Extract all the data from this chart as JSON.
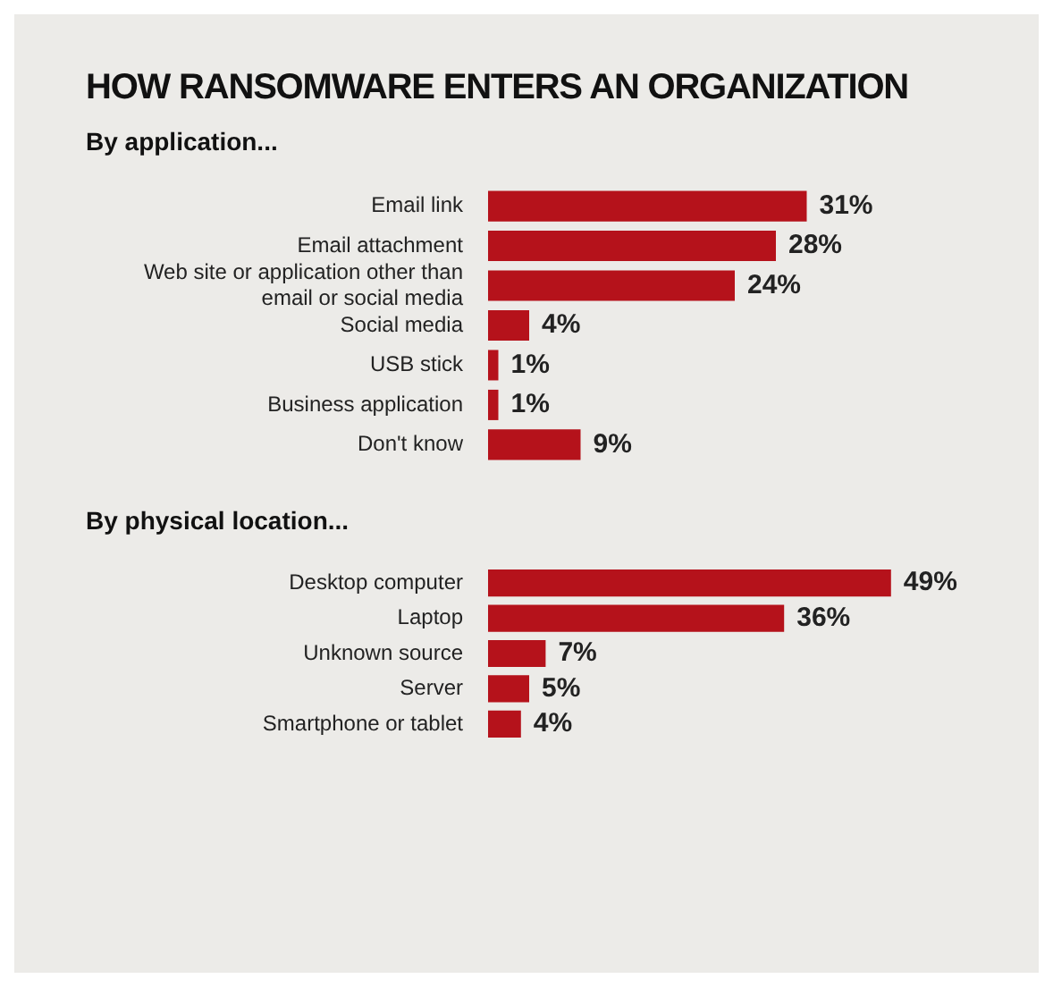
{
  "chart_data": [
    {
      "type": "bar",
      "orientation": "horizontal",
      "title": "HOW RANSOMWARE ENTERS AN ORGANIZATION",
      "subtitle": "By application...",
      "categories": [
        "Email link",
        "Email attachment",
        "Web site or application other than email or social media",
        "Social media",
        "USB stick",
        "Business application",
        "Don't know"
      ],
      "values": [
        31,
        28,
        24,
        4,
        1,
        1,
        9
      ],
      "color": "#b5121b",
      "value_labels": [
        "31%",
        "28%",
        "24%",
        "4%",
        "1%",
        "1%",
        "9%"
      ]
    },
    {
      "type": "bar",
      "orientation": "horizontal",
      "subtitle": "By physical location...",
      "categories": [
        "Desktop computer",
        "Laptop",
        "Unknown source",
        "Server",
        "Smartphone or tablet"
      ],
      "values": [
        49,
        36,
        7,
        5,
        4
      ],
      "color": "#b5121b",
      "value_labels": [
        "49%",
        "36%",
        "7%",
        "5%",
        "4%"
      ]
    }
  ]
}
